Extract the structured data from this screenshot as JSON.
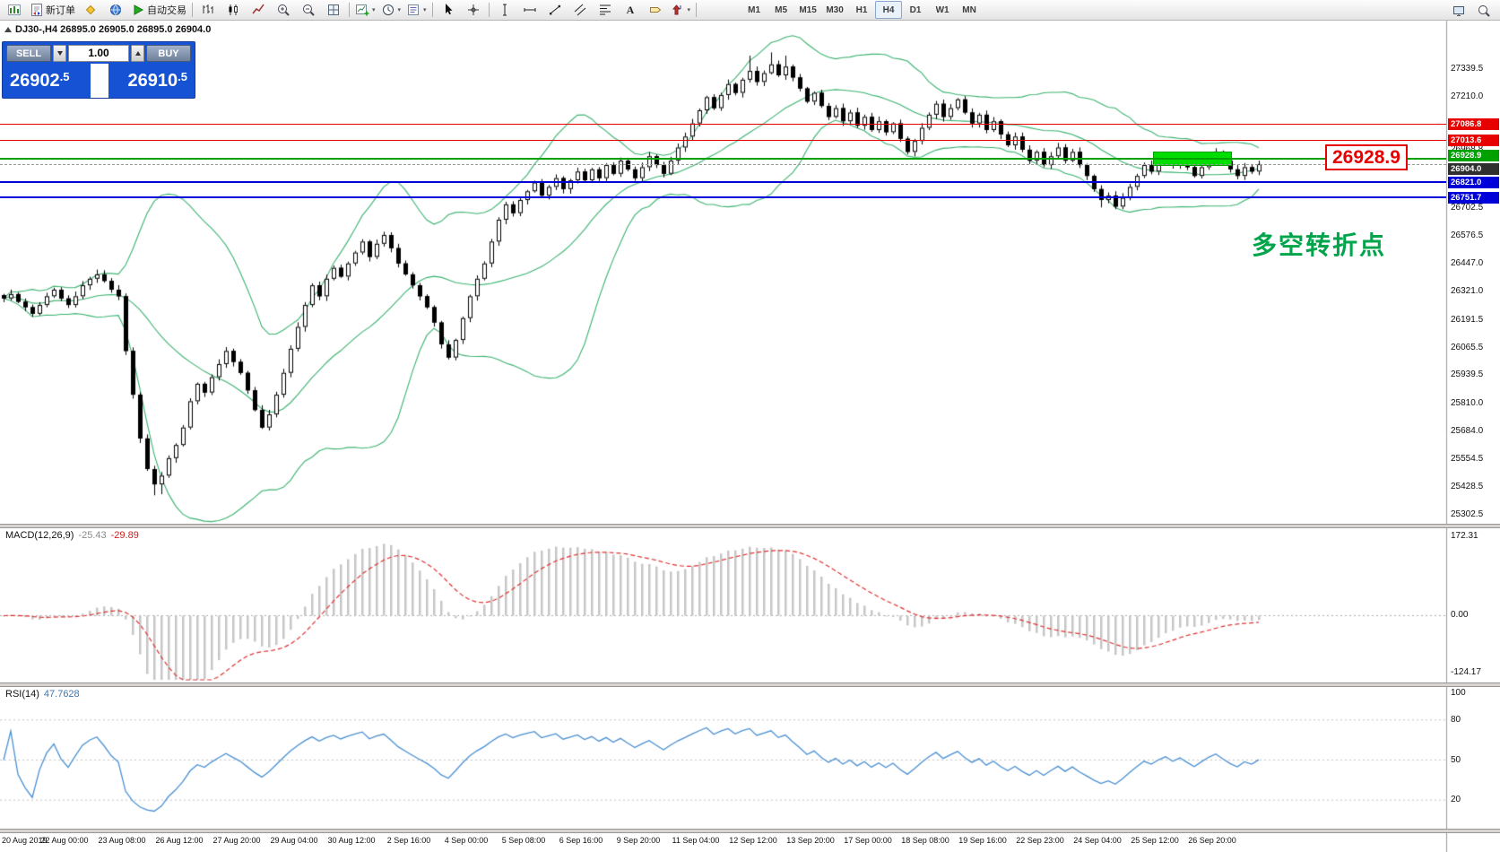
{
  "toolbar": {
    "buttons": [
      {
        "name": "chart-window-icon",
        "icon": "chart"
      },
      {
        "name": "new-order-button",
        "icon": "order",
        "label": "新订单"
      },
      {
        "name": "mql-market-icon",
        "icon": "diamond"
      },
      {
        "name": "data-window-icon",
        "icon": "globe"
      },
      {
        "name": "autotrading-button",
        "icon": "play",
        "label": "自动交易"
      },
      {
        "sep": true
      },
      {
        "name": "bars-mode-button",
        "icon": "bars"
      },
      {
        "name": "candles-mode-button",
        "icon": "candles"
      },
      {
        "name": "line-mode-button",
        "icon": "linechart"
      },
      {
        "name": "zoom-in-button",
        "icon": "zoomin"
      },
      {
        "name": "zoom-out-button",
        "icon": "zoomout"
      },
      {
        "name": "tile-windows-button",
        "icon": "grid"
      },
      {
        "sep": true
      },
      {
        "name": "new-chart-button",
        "icon": "chartplus",
        "dropdown": true
      },
      {
        "name": "period-button",
        "icon": "clock",
        "dropdown": true
      },
      {
        "name": "template-button",
        "icon": "template",
        "dropdown": true
      },
      {
        "sep": true
      },
      {
        "name": "cursor-button",
        "icon": "cursor"
      },
      {
        "name": "crosshair-button",
        "icon": "crosshair"
      },
      {
        "sep": true
      },
      {
        "name": "vertical-line-button",
        "icon": "vline"
      },
      {
        "name": "horizontal-line-button",
        "icon": "hline"
      },
      {
        "name": "trendline-button",
        "icon": "tline"
      },
      {
        "name": "equidistant-channel-button",
        "icon": "channel"
      },
      {
        "name": "fibonacci-button",
        "icon": "fibo"
      },
      {
        "name": "text-button",
        "icon": "text"
      },
      {
        "name": "text-label-button",
        "icon": "label"
      },
      {
        "name": "arrows-button",
        "icon": "arrows",
        "dropdown": true
      },
      {
        "sep": true
      }
    ],
    "timeframes": [
      {
        "label": "M1"
      },
      {
        "label": "M5"
      },
      {
        "label": "M15"
      },
      {
        "label": "M30"
      },
      {
        "label": "H1"
      },
      {
        "label": "H4",
        "active": true
      },
      {
        "label": "D1"
      },
      {
        "label": "W1"
      },
      {
        "label": "MN"
      }
    ],
    "right_buttons": [
      {
        "name": "window-button",
        "icon": "monitor"
      },
      {
        "name": "search-button",
        "icon": "magnifier"
      }
    ]
  },
  "chart": {
    "symbol_info": "DJ30-,H4 26895.0 26905.0 26895.0 26904.0",
    "trade_panel": {
      "sell_label": "SELL",
      "buy_label": "BUY",
      "volume": "1.00",
      "sell_price_main": "26902",
      "sell_price_frac": ".5",
      "buy_price_main": "26910",
      "buy_price_frac": ".5"
    },
    "big_price_label": "26928.9",
    "annotation": "多空转折点",
    "lines": [
      {
        "name": "resistance-1",
        "value": 27086.8,
        "label": "27086.8",
        "color": "#e60000",
        "width": 1
      },
      {
        "name": "resistance-2",
        "value": 27013.6,
        "label": "27013.6",
        "color": "#e60000",
        "width": 1
      },
      {
        "name": "pivot",
        "value": 26928.9,
        "label": "26928.9",
        "color": "#00a000",
        "width": 2
      },
      {
        "name": "support-1",
        "value": 26821.0,
        "label": "26821.0",
        "color": "#0000d8",
        "width": 2
      },
      {
        "name": "support-2",
        "value": 26751.7,
        "label": "26751.7",
        "color": "#0000d8",
        "width": 2
      }
    ],
    "current_price": {
      "value": 26904.0,
      "label": "26904.0"
    },
    "scale_ticks": [
      "27339.5",
      "27210.0",
      "26968.8",
      "26702.5",
      "26576.5",
      "26447.0",
      "26321.0",
      "26191.5",
      "26065.5",
      "25939.5",
      "25810.0",
      "25684.0",
      "25554.5",
      "25428.5",
      "25302.5"
    ]
  },
  "chart_data": {
    "type": "candlestick",
    "symbol": "DJ30-",
    "timeframe": "H4",
    "ylim": [
      25260,
      27560
    ],
    "bid": 26902.5,
    "ask": 26910.5,
    "last_bar": {
      "open": 26895.0,
      "high": 26905.0,
      "low": 26895.0,
      "close": 26904.0
    },
    "closes": [
      26290,
      26310,
      26275,
      26250,
      26220,
      26260,
      26300,
      26330,
      26290,
      26260,
      26300,
      26350,
      26380,
      26400,
      26370,
      26330,
      26300,
      26050,
      25850,
      25650,
      25510,
      25440,
      25480,
      25560,
      25620,
      25700,
      25820,
      25900,
      25860,
      25930,
      25990,
      26050,
      26000,
      25950,
      25870,
      25780,
      25700,
      25760,
      25850,
      25950,
      26060,
      26160,
      26260,
      26350,
      26300,
      26380,
      26430,
      26390,
      26450,
      26500,
      26550,
      26480,
      26540,
      26580,
      26520,
      26450,
      26400,
      26350,
      26300,
      26250,
      26180,
      26080,
      26020,
      26100,
      26200,
      26300,
      26380,
      26450,
      26550,
      26650,
      26720,
      26680,
      26740,
      26780,
      26820,
      26760,
      26800,
      26840,
      26790,
      26830,
      26870,
      26830,
      26880,
      26840,
      26900,
      26860,
      26920,
      26880,
      26840,
      26890,
      26940,
      26900,
      26860,
      26920,
      26980,
      27030,
      27090,
      27150,
      27210,
      27160,
      27220,
      27270,
      27230,
      27290,
      27330,
      27280,
      27320,
      27360,
      27310,
      27350,
      27300,
      27250,
      27190,
      27230,
      27170,
      27120,
      27160,
      27100,
      27140,
      27080,
      27120,
      27060,
      27100,
      27050,
      27090,
      27020,
      26960,
      27010,
      27070,
      27130,
      27180,
      27120,
      27160,
      27200,
      27140,
      27090,
      27130,
      27060,
      27100,
      27040,
      26990,
      27030,
      26970,
      26920,
      26960,
      26900,
      26940,
      26980,
      26920,
      26960,
      26900,
      26850,
      26790,
      26740,
      26760,
      26710,
      26750,
      26800,
      26850,
      26900,
      26870,
      26910,
      26940,
      26900,
      26930,
      26890,
      26850,
      26890,
      26930,
      26960,
      26920,
      26880,
      26850,
      26890,
      26870,
      26904
    ],
    "wick_overrides": {
      "21": {
        "low": 25390
      },
      "22": {
        "low": 25395
      },
      "104": {
        "high": 27400
      },
      "107": {
        "high": 27415
      },
      "109": {
        "high": 27400
      },
      "153": {
        "low": 26706
      },
      "155": {
        "low": 26698
      }
    },
    "indicators": [
      {
        "name": "Bollinger Bands",
        "period": 20,
        "deviation": 2,
        "color": "#3cb371"
      },
      {
        "name": "MACD",
        "fast": 12,
        "slow": 26,
        "signal": 9,
        "histogram_color": "#c6c6c6",
        "signal_color": "#e03030"
      },
      {
        "name": "RSI",
        "period": 14,
        "color": "#4a90d2"
      }
    ],
    "highlight_zone": {
      "price": 26928.9,
      "color": "#00dd00"
    }
  },
  "macd_panel": {
    "label": "MACD(12,26,9)",
    "value_main": "-25.43",
    "value_signal": "-29.89",
    "scale_ticks": [
      "172.31",
      "0.00",
      "-124.17"
    ],
    "scale_values": [
      172.31,
      0,
      -124.17
    ]
  },
  "rsi_panel": {
    "label": "RSI(14)",
    "value": "47.7628",
    "scale_ticks": [
      "100",
      "80",
      "50",
      "20"
    ],
    "scale_values": [
      100,
      80,
      50,
      20
    ],
    "levels": [
      80,
      50,
      20
    ]
  },
  "time_axis": {
    "labels": [
      "20 Aug 2019",
      "22 Aug 00:00",
      "23 Aug 08:00",
      "26 Aug 12:00",
      "27 Aug 20:00",
      "29 Aug 04:00",
      "30 Aug 12:00",
      "2 Sep 16:00",
      "4 Sep 00:00",
      "5 Sep 08:00",
      "6 Sep 16:00",
      "9 Sep 20:00",
      "11 Sep 04:00",
      "12 Sep 12:00",
      "13 Sep 20:00",
      "17 Sep 00:00",
      "18 Sep 08:00",
      "19 Sep 16:00",
      "22 Sep 23:00",
      "24 Sep 04:00",
      "25 Sep 12:00",
      "26 Sep 20:00"
    ]
  }
}
